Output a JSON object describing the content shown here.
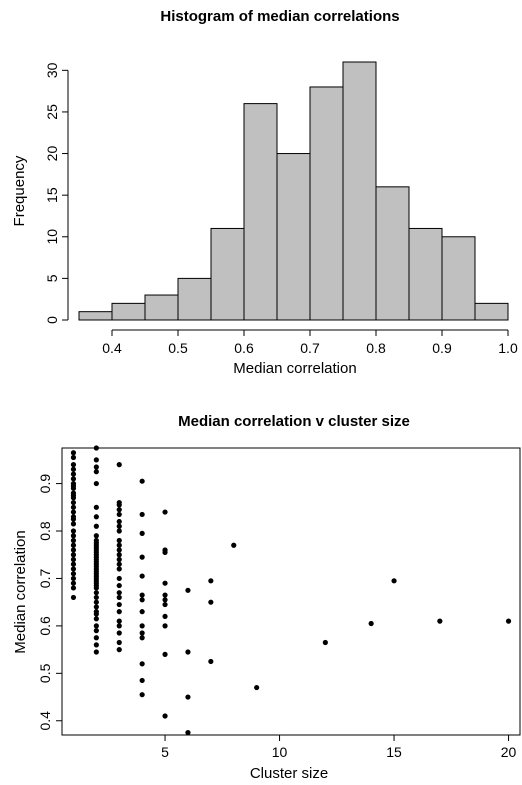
{
  "chart_data": [
    {
      "type": "bar",
      "title": "Histogram of median correlations",
      "xlabel": "Median correlation",
      "ylabel": "Frequency",
      "bin_edges": [
        0.35,
        0.4,
        0.45,
        0.5,
        0.55,
        0.6,
        0.65,
        0.7,
        0.75,
        0.8,
        0.85,
        0.9,
        0.95,
        1.0
      ],
      "values": [
        1,
        2,
        3,
        5,
        11,
        26,
        20,
        28,
        31,
        16,
        11,
        10,
        2
      ],
      "xlim": [
        0.35,
        1.0
      ],
      "ylim": [
        0,
        31
      ],
      "xticks": [
        "0.4",
        "0.5",
        "0.6",
        "0.7",
        "0.8",
        "0.9",
        "1.0"
      ],
      "yticks": [
        "0",
        "5",
        "10",
        "15",
        "20",
        "25",
        "30"
      ],
      "bar_color": "#c0c0c0",
      "grid": false
    },
    {
      "type": "scatter",
      "title": "Median correlation v cluster size",
      "xlabel": "Cluster size",
      "ylabel": "Median correlation",
      "xlim": [
        0.5,
        20.5
      ],
      "ylim": [
        0.37,
        0.975
      ],
      "xticks": [
        "5",
        "10",
        "15",
        "20"
      ],
      "yticks": [
        "0.4",
        "0.5",
        "0.6",
        "0.7",
        "0.8",
        "0.9"
      ],
      "point_color": "#000000",
      "grid": false,
      "points": [
        [
          1,
          0.965
        ],
        [
          1,
          0.955
        ],
        [
          1,
          0.94
        ],
        [
          1,
          0.93
        ],
        [
          1,
          0.92
        ],
        [
          1,
          0.91
        ],
        [
          1,
          0.9
        ],
        [
          1,
          0.895
        ],
        [
          1,
          0.89
        ],
        [
          1,
          0.88
        ],
        [
          1,
          0.875
        ],
        [
          1,
          0.87
        ],
        [
          1,
          0.86
        ],
        [
          1,
          0.85
        ],
        [
          1,
          0.84
        ],
        [
          1,
          0.83
        ],
        [
          1,
          0.825
        ],
        [
          1,
          0.815
        ],
        [
          1,
          0.8
        ],
        [
          1,
          0.79
        ],
        [
          1,
          0.78
        ],
        [
          1,
          0.77
        ],
        [
          1,
          0.76
        ],
        [
          1,
          0.75
        ],
        [
          1,
          0.74
        ],
        [
          1,
          0.73
        ],
        [
          1,
          0.72
        ],
        [
          1,
          0.71
        ],
        [
          1,
          0.7
        ],
        [
          1,
          0.69
        ],
        [
          1,
          0.68
        ],
        [
          1,
          0.66
        ],
        [
          2,
          0.975
        ],
        [
          2,
          0.95
        ],
        [
          2,
          0.935
        ],
        [
          2,
          0.925
        ],
        [
          2,
          0.9
        ],
        [
          2,
          0.85
        ],
        [
          2,
          0.83
        ],
        [
          2,
          0.81
        ],
        [
          2,
          0.79
        ],
        [
          2,
          0.78
        ],
        [
          2,
          0.775
        ],
        [
          2,
          0.77
        ],
        [
          2,
          0.765
        ],
        [
          2,
          0.76
        ],
        [
          2,
          0.755
        ],
        [
          2,
          0.75
        ],
        [
          2,
          0.745
        ],
        [
          2,
          0.74
        ],
        [
          2,
          0.735
        ],
        [
          2,
          0.73
        ],
        [
          2,
          0.725
        ],
        [
          2,
          0.72
        ],
        [
          2,
          0.715
        ],
        [
          2,
          0.71
        ],
        [
          2,
          0.705
        ],
        [
          2,
          0.7
        ],
        [
          2,
          0.695
        ],
        [
          2,
          0.69
        ],
        [
          2,
          0.685
        ],
        [
          2,
          0.68
        ],
        [
          2,
          0.67
        ],
        [
          2,
          0.66
        ],
        [
          2,
          0.65
        ],
        [
          2,
          0.64
        ],
        [
          2,
          0.63
        ],
        [
          2,
          0.625
        ],
        [
          2,
          0.615
        ],
        [
          2,
          0.6
        ],
        [
          2,
          0.59
        ],
        [
          2,
          0.575
        ],
        [
          2,
          0.56
        ],
        [
          2,
          0.545
        ],
        [
          3,
          0.94
        ],
        [
          3,
          0.86
        ],
        [
          3,
          0.855
        ],
        [
          3,
          0.845
        ],
        [
          3,
          0.835
        ],
        [
          3,
          0.82
        ],
        [
          3,
          0.81
        ],
        [
          3,
          0.8
        ],
        [
          3,
          0.78
        ],
        [
          3,
          0.77
        ],
        [
          3,
          0.76
        ],
        [
          3,
          0.75
        ],
        [
          3,
          0.74
        ],
        [
          3,
          0.73
        ],
        [
          3,
          0.72
        ],
        [
          3,
          0.7
        ],
        [
          3,
          0.685
        ],
        [
          3,
          0.67
        ],
        [
          3,
          0.66
        ],
        [
          3,
          0.645
        ],
        [
          3,
          0.63
        ],
        [
          3,
          0.61
        ],
        [
          3,
          0.6
        ],
        [
          3,
          0.585
        ],
        [
          3,
          0.565
        ],
        [
          3,
          0.55
        ],
        [
          4,
          0.905
        ],
        [
          4,
          0.835
        ],
        [
          4,
          0.795
        ],
        [
          4,
          0.745
        ],
        [
          4,
          0.705
        ],
        [
          4,
          0.665
        ],
        [
          4,
          0.655
        ],
        [
          4,
          0.63
        ],
        [
          4,
          0.6
        ],
        [
          4,
          0.585
        ],
        [
          4,
          0.575
        ],
        [
          4,
          0.52
        ],
        [
          4,
          0.485
        ],
        [
          4,
          0.455
        ],
        [
          5,
          0.84
        ],
        [
          5,
          0.76
        ],
        [
          5,
          0.755
        ],
        [
          5,
          0.69
        ],
        [
          5,
          0.665
        ],
        [
          5,
          0.655
        ],
        [
          5,
          0.645
        ],
        [
          5,
          0.62
        ],
        [
          5,
          0.6
        ],
        [
          5,
          0.54
        ],
        [
          5,
          0.41
        ],
        [
          6,
          0.675
        ],
        [
          6,
          0.545
        ],
        [
          6,
          0.45
        ],
        [
          6,
          0.375
        ],
        [
          7,
          0.695
        ],
        [
          7,
          0.65
        ],
        [
          7,
          0.525
        ],
        [
          8,
          0.77
        ],
        [
          9,
          0.47
        ],
        [
          12,
          0.565
        ],
        [
          14,
          0.605
        ],
        [
          15,
          0.695
        ],
        [
          17,
          0.61
        ],
        [
          20,
          0.61
        ]
      ]
    }
  ]
}
